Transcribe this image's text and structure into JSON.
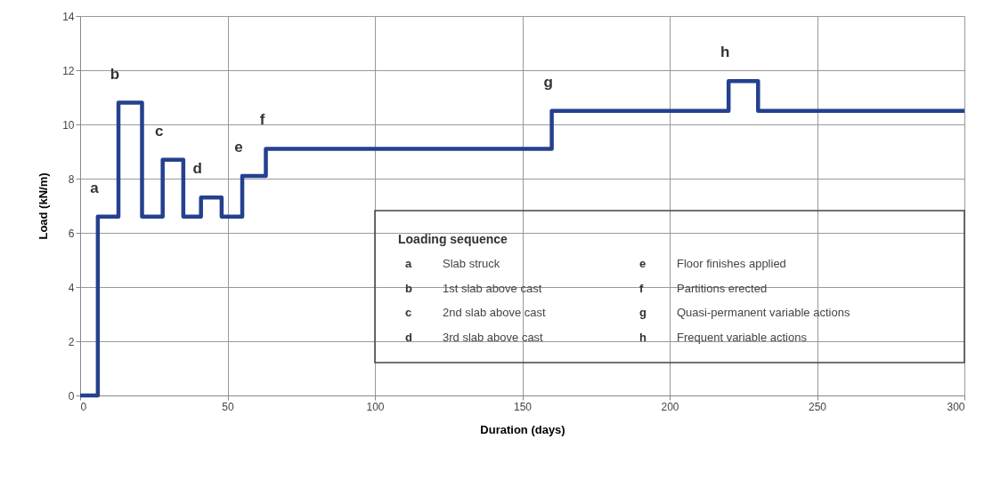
{
  "chart_data": {
    "type": "step",
    "xlabel": "Duration (days)",
    "ylabel": "Load (kN/m)",
    "x": [
      0,
      6,
      13,
      21,
      28,
      35,
      41,
      48,
      55,
      63,
      160,
      220,
      230,
      300
    ],
    "series": [
      {
        "color": "#24408e",
        "values": [
          0,
          6.6,
          10.8,
          6.6,
          8.7,
          6.6,
          7.3,
          6.6,
          8.1,
          9.1,
          10.5,
          11.6,
          10.5,
          10.5
        ]
      }
    ],
    "xlim": [
      0,
      300
    ],
    "xticks": [
      0,
      50,
      100,
      150,
      200,
      250,
      300
    ],
    "ylim": [
      0,
      14
    ],
    "yticks": [
      0,
      2,
      4,
      6,
      8,
      10,
      12,
      14
    ],
    "grid": true,
    "marker": "none",
    "line_style": "solid",
    "annotations": [
      {
        "text": "a",
        "x": 6,
        "y": 6.6
      },
      {
        "text": "b",
        "x": 13,
        "y": 10.8
      },
      {
        "text": "c",
        "x": 28,
        "y": 8.7
      },
      {
        "text": "d",
        "x": 41,
        "y": 7.3
      },
      {
        "text": "e",
        "x": 55,
        "y": 8.1
      },
      {
        "text": "f",
        "x": 63,
        "y": 9.1
      },
      {
        "text": "g",
        "x": 160,
        "y": 10.5
      },
      {
        "text": "h",
        "x": 220,
        "y": 11.6
      },
      "Loading sequence",
      "a",
      "Slab struck",
      "b",
      "1st slab above cast",
      "c",
      "2nd slab above cast",
      "d",
      "3rd slab above cast",
      "e",
      "Floor finishes applied",
      "f",
      "Partitions erected",
      "g",
      "Quasi-permanent variable actions",
      "h",
      "Frequent variable actions"
    ]
  }
}
